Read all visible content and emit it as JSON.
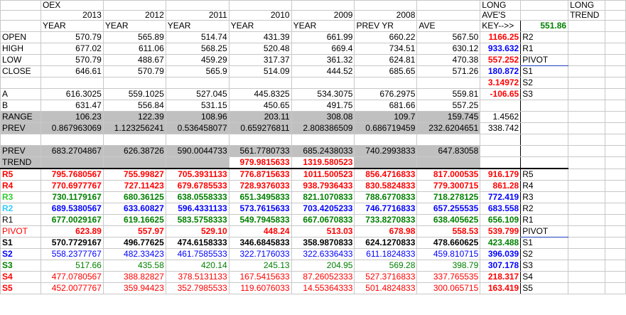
{
  "header": {
    "index_name": "OEX",
    "long_label_1": "LONG",
    "long_label_2": "AVE'S",
    "long_trend_1": "LONG",
    "long_trend_2": "TREND",
    "years": [
      "2013",
      "2012",
      "2011",
      "2010",
      "2009",
      "2008"
    ],
    "col_labels": [
      "YEAR",
      "YEAR",
      "YEAR",
      "YEAR",
      "YEAR",
      "PREV YR",
      "AVE",
      "KEY-->>",
      "551.86"
    ]
  },
  "rows": {
    "open": {
      "label": "OPEN",
      "vals": [
        "570.79",
        "565.89",
        "514.74",
        "431.39",
        "661.99",
        "660.22",
        "567.50"
      ],
      "key": "1166.25",
      "key_label": "R2"
    },
    "high": {
      "label": "HIGH",
      "vals": [
        "677.02",
        "611.06",
        "568.25",
        "520.48",
        "669.4",
        "734.51",
        "630.12"
      ],
      "key": "933.632",
      "key_label": "R1"
    },
    "low": {
      "label": "LOW",
      "vals": [
        "570.79",
        "488.67",
        "459.29",
        "317.37",
        "361.32",
        "624.81",
        "470.38"
      ],
      "key": "557.252",
      "key_label": "PIVOT"
    },
    "close": {
      "label": "CLOSE",
      "vals": [
        "646.61",
        "570.79",
        "565.9",
        "514.09",
        "444.52",
        "685.65",
        "571.26"
      ],
      "key": "180.872",
      "key_label": "S1"
    },
    "blank": {
      "key": "3.14972",
      "key_label": "S2"
    },
    "a": {
      "label": "A",
      "vals": [
        "616.3025",
        "559.1025",
        "527.045",
        "445.8325",
        "534.3075",
        "676.2975",
        "559.81"
      ],
      "key": "-106.65",
      "key_label": "S3"
    },
    "b": {
      "label": "B",
      "vals": [
        "631.47",
        "556.84",
        "531.15",
        "450.65",
        "491.75",
        "681.66",
        "557.25"
      ]
    },
    "range": {
      "label": "RANGE",
      "vals": [
        "106.23",
        "122.39",
        "108.96",
        "203.11",
        "308.08",
        "109.7",
        "159.745"
      ],
      "key": "1.4562"
    },
    "prev": {
      "label": "PREV",
      "vals": [
        "0.867963069",
        "1.123256241",
        "0.536458077",
        "0.659276811",
        "2.808386509",
        "0.686719459",
        "232.6204651"
      ],
      "key": "338.742"
    },
    "prev2": {
      "label": "PREV",
      "vals": [
        "683.2704867",
        "626.38726",
        "590.0044733",
        "561.7780733",
        "685.2438033",
        "740.2993833",
        "647.83058"
      ]
    },
    "trend": {
      "label": "TREND",
      "v2010": "979.9815633",
      "v2009": "1319.580523"
    },
    "r5": {
      "label": "R5",
      "vals": [
        "795.7680567",
        "755.99827",
        "705.3931133",
        "776.8715633",
        "1011.500523",
        "856.4716833",
        "817.000535"
      ],
      "key": "916.179",
      "key_label": "R5"
    },
    "r4": {
      "label": "R4",
      "vals": [
        "770.6977767",
        "727.11423",
        "679.6785533",
        "728.9376033",
        "938.7936433",
        "830.5824833",
        "779.300715"
      ],
      "key": "861.28",
      "key_label": "R4"
    },
    "r3": {
      "label": "R3",
      "vals": [
        "730.1179167",
        "680.36125",
        "638.0558333",
        "651.3495833",
        "821.1070833",
        "788.6770833",
        "718.278125"
      ],
      "key": "772.419",
      "key_label": "R3"
    },
    "r2": {
      "label": "R2",
      "vals": [
        "689.5380567",
        "633.60827",
        "596.4331133",
        "573.7615633",
        "703.4205233",
        "746.7716833",
        "657.255535"
      ],
      "key": "683.558",
      "key_label": "R2"
    },
    "r1": {
      "label": "R1",
      "vals": [
        "677.0029167",
        "619.16625",
        "583.5758333",
        "549.7945833",
        "667.0670833",
        "733.8270833",
        "638.405625"
      ],
      "key": "656.109",
      "key_label": "R1"
    },
    "pivot": {
      "label": "PIVOT",
      "vals": [
        "623.89",
        "557.97",
        "529.10",
        "448.24",
        "513.03",
        "678.98",
        "558.53"
      ],
      "key": "539.799",
      "key_label": "PIVOT"
    },
    "s1": {
      "label": "S1",
      "vals": [
        "570.7729167",
        "496.77625",
        "474.6158333",
        "346.6845833",
        "358.9870833",
        "624.1270833",
        "478.660625"
      ],
      "key": "423.488",
      "key_label": "S1"
    },
    "s2": {
      "label": "S2",
      "vals": [
        "558.2377767",
        "482.33423",
        "461.7585533",
        "322.7176033",
        "322.6336433",
        "611.1824833",
        "459.810715"
      ],
      "key": "396.039",
      "key_label": "S2"
    },
    "s3": {
      "label": "S3",
      "vals": [
        "517.66",
        "435.58",
        "420.14",
        "245.13",
        "204.95",
        "569.28",
        "398.79"
      ],
      "key": "307.178",
      "key_label": "S3"
    },
    "s4": {
      "label": "S4",
      "vals": [
        "477.0780567",
        "388.82827",
        "378.5131133",
        "167.5415633",
        "87.26052333",
        "527.3716833",
        "337.765535"
      ],
      "key": "218.317",
      "key_label": "S4"
    },
    "s5": {
      "label": "S5",
      "vals": [
        "452.0077767",
        "359.94423",
        "352.7985533",
        "119.6076033",
        "14.55364333",
        "501.4824833",
        "300.065715"
      ],
      "key": "163.419",
      "key_label": "S5"
    }
  },
  "colors": {
    "red": "#ff0000",
    "blue": "#0000ff",
    "green": "#008000",
    "cyan": "#33ccff",
    "shade": "#c0c0c0"
  }
}
